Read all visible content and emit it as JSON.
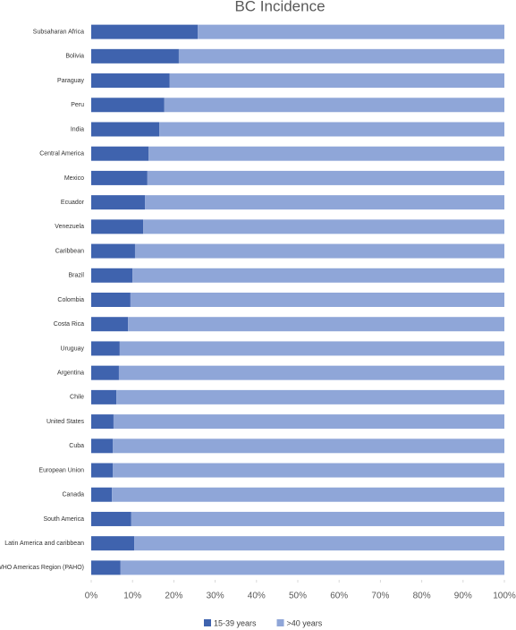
{
  "chart_data": {
    "type": "stacked_barh",
    "title": "BC Incidence",
    "categories": [
      "Subsaharan Africa",
      "Bolivia",
      "Paraguay",
      "Peru",
      "India",
      "Central America",
      "Mexico",
      "Ecuador",
      "Venezuela",
      "Caribbean",
      "Brazil",
      "Colombia",
      "Costa Rica",
      "Uruguay",
      "Argentina",
      "Chile",
      "United States",
      "Cuba",
      "European Union",
      "Canada",
      "South America",
      "Latin America and caribbean",
      "WHO Americas Region (PAHO)"
    ],
    "series": [
      {
        "name": "15-39 years",
        "color": "#3f63ae",
        "values": [
          25.8,
          21.2,
          19.0,
          17.7,
          16.5,
          13.9,
          13.6,
          13.0,
          12.6,
          10.6,
          10.0,
          9.5,
          8.9,
          6.9,
          6.7,
          6.1,
          5.4,
          5.2,
          5.2,
          5.0,
          9.7,
          10.4,
          7.1
        ]
      },
      {
        "name": ">40 years",
        "color": "#8fa6d8",
        "values": [
          74.2,
          78.8,
          81.0,
          82.3,
          83.5,
          86.1,
          86.4,
          87.0,
          87.4,
          89.4,
          90.0,
          90.5,
          91.1,
          93.1,
          93.3,
          93.9,
          94.6,
          94.8,
          94.8,
          95.0,
          90.3,
          89.6,
          92.9
        ]
      }
    ],
    "xlim": [
      0,
      100
    ],
    "xticks": [
      {
        "value": 0,
        "label": "0%"
      },
      {
        "value": 10,
        "label": "10%"
      },
      {
        "value": 20,
        "label": "20%"
      },
      {
        "value": 30,
        "label": "30%"
      },
      {
        "value": 40,
        "label": "40%"
      },
      {
        "value": 50,
        "label": "50%"
      },
      {
        "value": 60,
        "label": "60%"
      },
      {
        "value": 70,
        "label": "70%"
      },
      {
        "value": 80,
        "label": "80%"
      },
      {
        "value": 90,
        "label": "90%"
      },
      {
        "value": 100,
        "label": "100%"
      }
    ],
    "legend": "bottom"
  }
}
